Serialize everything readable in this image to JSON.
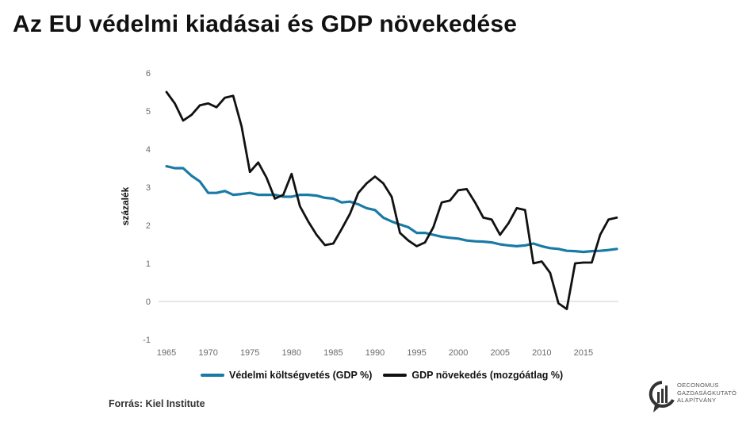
{
  "title": "Az EU védelmi kiadásai és GDP növekedése",
  "source": "Forrás: Kiel Institute",
  "logo_lines": [
    "OECONOMUS",
    "GAZDASÁGKUTATÓ",
    "ALAPÍTVÁNY"
  ],
  "colors": {
    "defense": "#1a7aa6",
    "gdp": "#111111",
    "axis": "#cccccc"
  },
  "chart_data": {
    "type": "line",
    "title": "Az EU védelmi kiadásai és GDP növekedése",
    "ylabel": "százalék",
    "xlabel": "",
    "xlim": [
      1965,
      2019
    ],
    "ylim": [
      -1,
      6
    ],
    "xticks": [
      1965,
      1970,
      1975,
      1980,
      1985,
      1990,
      1995,
      2000,
      2005,
      2010,
      2015
    ],
    "yticks": [
      -1,
      0,
      1,
      2,
      3,
      4,
      5,
      6
    ],
    "legend_position": "bottom",
    "grid": false,
    "x": [
      1965,
      1966,
      1967,
      1968,
      1969,
      1970,
      1971,
      1972,
      1973,
      1974,
      1975,
      1976,
      1977,
      1978,
      1979,
      1980,
      1981,
      1982,
      1983,
      1984,
      1985,
      1986,
      1987,
      1988,
      1989,
      1990,
      1991,
      1992,
      1993,
      1994,
      1995,
      1996,
      1997,
      1998,
      1999,
      2000,
      2001,
      2002,
      2003,
      2004,
      2005,
      2006,
      2007,
      2008,
      2009,
      2010,
      2011,
      2012,
      2013,
      2014,
      2015,
      2016,
      2017,
      2018,
      2019
    ],
    "series": [
      {
        "name": "Védelmi költségvetés (GDP %)",
        "color": "#1a7aa6",
        "values": [
          3.55,
          3.5,
          3.5,
          3.3,
          3.15,
          2.85,
          2.85,
          2.9,
          2.8,
          2.82,
          2.85,
          2.8,
          2.8,
          2.8,
          2.75,
          2.75,
          2.8,
          2.8,
          2.78,
          2.72,
          2.7,
          2.6,
          2.62,
          2.55,
          2.45,
          2.4,
          2.2,
          2.1,
          2.02,
          1.95,
          1.8,
          1.8,
          1.75,
          1.7,
          1.67,
          1.65,
          1.6,
          1.58,
          1.57,
          1.55,
          1.5,
          1.47,
          1.45,
          1.47,
          1.52,
          1.45,
          1.4,
          1.38,
          1.33,
          1.32,
          1.3,
          1.32,
          1.33,
          1.35,
          1.38
        ]
      },
      {
        "name": "GDP növekedés (mozgóátlag %)",
        "color": "#111111",
        "values": [
          5.5,
          5.2,
          4.75,
          4.9,
          5.15,
          5.2,
          5.1,
          5.35,
          5.4,
          4.6,
          3.4,
          3.65,
          3.25,
          2.7,
          2.8,
          3.35,
          2.5,
          2.1,
          1.75,
          1.48,
          1.52,
          1.9,
          2.3,
          2.85,
          3.1,
          3.28,
          3.1,
          2.75,
          1.8,
          1.6,
          1.45,
          1.55,
          1.95,
          2.6,
          2.65,
          2.92,
          2.95,
          2.6,
          2.2,
          2.15,
          1.75,
          2.05,
          2.45,
          2.4,
          1.0,
          1.05,
          0.75,
          -0.05,
          -0.2,
          1.0,
          1.02,
          1.02,
          1.75,
          2.15,
          2.2
        ]
      }
    ]
  }
}
